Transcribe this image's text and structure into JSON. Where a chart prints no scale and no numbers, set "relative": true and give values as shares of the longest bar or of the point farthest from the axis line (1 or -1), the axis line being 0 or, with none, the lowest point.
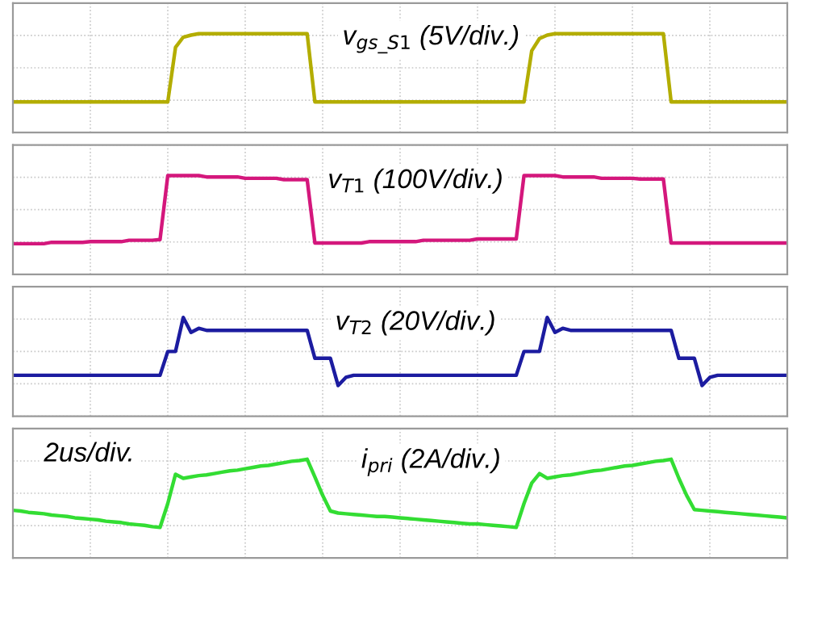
{
  "chart_data": [
    {
      "type": "line",
      "title": "v$_{gs_S1}$ (5V/div.)",
      "relative": true,
      "grid": true,
      "tick_labels": false,
      "categories": [
        null,
        null,
        null,
        null,
        null,
        null,
        null,
        null,
        null,
        null,
        null,
        null,
        null,
        null,
        null,
        null,
        null,
        null,
        null,
        null,
        null,
        null,
        null,
        null,
        null,
        null,
        null,
        null,
        null,
        null,
        null,
        null,
        null,
        null,
        null,
        null,
        null,
        null,
        null,
        null,
        null,
        null,
        null,
        null,
        null,
        null,
        null,
        null,
        null,
        null,
        null,
        null,
        null,
        null,
        null,
        null,
        null,
        null,
        null,
        null,
        null,
        null,
        null,
        null,
        null,
        null,
        null,
        null,
        null,
        null,
        null,
        null,
        null,
        null,
        null,
        null,
        null,
        null,
        null,
        null,
        null,
        null,
        null,
        null,
        null,
        null,
        null,
        null,
        null,
        null,
        null,
        null,
        null,
        null,
        null,
        null,
        null,
        null,
        null,
        null,
        null
      ],
      "series": [
        {
          "color": "#b3ad00",
          "values": [
            0,
            0,
            0,
            0,
            0,
            0,
            0,
            0,
            0,
            0,
            0,
            0,
            0,
            0,
            0,
            0,
            0,
            0,
            0,
            0,
            0,
            0.8,
            0.95,
            0.98,
            1,
            1,
            1,
            1,
            1,
            1,
            1,
            1,
            1,
            1,
            1,
            1,
            1,
            1,
            1,
            0,
            0,
            0,
            0,
            0,
            0,
            0,
            0,
            0,
            0,
            0,
            0,
            0,
            0,
            0,
            0,
            0,
            0,
            0,
            0,
            0,
            0,
            0,
            0,
            0,
            0,
            0,
            0,
            0.75,
            0.93,
            0.98,
            1,
            1,
            1,
            1,
            1,
            1,
            1,
            1,
            1,
            1,
            1,
            1,
            1,
            1,
            1,
            0,
            0,
            0,
            0,
            0,
            0,
            0,
            0,
            0,
            0,
            0,
            0,
            0,
            0,
            0,
            0
          ]
        }
      ]
    },
    {
      "type": "line",
      "title": "v$_{T1}$ (100V/div.)",
      "relative": true,
      "grid": true,
      "tick_labels": false,
      "categories": [
        null,
        null,
        null,
        null,
        null,
        null,
        null,
        null,
        null,
        null,
        null,
        null,
        null,
        null,
        null,
        null,
        null,
        null,
        null,
        null,
        null,
        null,
        null,
        null,
        null,
        null,
        null,
        null,
        null,
        null,
        null,
        null,
        null,
        null,
        null,
        null,
        null,
        null,
        null,
        null,
        null,
        null,
        null,
        null,
        null,
        null,
        null,
        null,
        null,
        null,
        null,
        null,
        null,
        null,
        null,
        null,
        null,
        null,
        null,
        null,
        null,
        null,
        null,
        null,
        null,
        null,
        null,
        null,
        null,
        null,
        null,
        null,
        null,
        null,
        null,
        null,
        null,
        null,
        null,
        null,
        null,
        null,
        null,
        null,
        null,
        null,
        null,
        null,
        null,
        null,
        null,
        null,
        null,
        null,
        null,
        null,
        null,
        null,
        null,
        null,
        null
      ],
      "series": [
        {
          "color": "#d4177c",
          "values": [
            0,
            0,
            0,
            0,
            0,
            0.02,
            0.02,
            0.02,
            0.02,
            0.02,
            0.03,
            0.03,
            0.03,
            0.03,
            0.03,
            0.05,
            0.05,
            0.05,
            0.05,
            0.06,
            1,
            1,
            1,
            1,
            1,
            0.98,
            0.98,
            0.98,
            0.98,
            0.98,
            0.96,
            0.96,
            0.96,
            0.96,
            0.96,
            0.94,
            0.94,
            0.94,
            0.94,
            0.01,
            0.01,
            0.01,
            0.01,
            0.01,
            0.01,
            0.01,
            0.03,
            0.03,
            0.03,
            0.03,
            0.03,
            0.03,
            0.03,
            0.05,
            0.05,
            0.05,
            0.05,
            0.05,
            0.05,
            0.05,
            0.07,
            0.07,
            0.07,
            0.07,
            0.07,
            0.07,
            1,
            1,
            1,
            1,
            1,
            0.98,
            0.98,
            0.98,
            0.98,
            0.98,
            0.96,
            0.96,
            0.96,
            0.96,
            0.96,
            0.95,
            0.95,
            0.95,
            0.95,
            0.01,
            0.01,
            0.01,
            0.01,
            0.01,
            0.01,
            0.01,
            0.01,
            0.01,
            0.01,
            0.01,
            0.01,
            0.01,
            0.01,
            0.01,
            0.01
          ]
        }
      ]
    },
    {
      "type": "line",
      "title": "v$_{T2}$ (20V/div.)",
      "relative": true,
      "grid": true,
      "tick_labels": false,
      "categories": [
        null,
        null,
        null,
        null,
        null,
        null,
        null,
        null,
        null,
        null,
        null,
        null,
        null,
        null,
        null,
        null,
        null,
        null,
        null,
        null,
        null,
        null,
        null,
        null,
        null,
        null,
        null,
        null,
        null,
        null,
        null,
        null,
        null,
        null,
        null,
        null,
        null,
        null,
        null,
        null,
        null,
        null,
        null,
        null,
        null,
        null,
        null,
        null,
        null,
        null,
        null,
        null,
        null,
        null,
        null,
        null,
        null,
        null,
        null,
        null,
        null,
        null,
        null,
        null,
        null,
        null,
        null,
        null,
        null,
        null,
        null,
        null,
        null,
        null,
        null,
        null,
        null,
        null,
        null,
        null,
        null,
        null,
        null,
        null,
        null,
        null,
        null,
        null,
        null,
        null,
        null,
        null,
        null,
        null,
        null,
        null,
        null,
        null,
        null,
        null,
        null
      ],
      "series": [
        {
          "color": "#1c1ca0",
          "values": [
            0.15,
            0.15,
            0.15,
            0.15,
            0.15,
            0.15,
            0.15,
            0.15,
            0.15,
            0.15,
            0.15,
            0.15,
            0.15,
            0.15,
            0.15,
            0.15,
            0.15,
            0.15,
            0.15,
            0.15,
            0.5,
            0.5,
            1,
            0.78,
            0.84,
            0.81,
            0.81,
            0.81,
            0.81,
            0.81,
            0.81,
            0.81,
            0.81,
            0.81,
            0.81,
            0.81,
            0.81,
            0.81,
            0.81,
            0.4,
            0.4,
            0.4,
            0,
            0.12,
            0.15,
            0.15,
            0.15,
            0.15,
            0.15,
            0.15,
            0.15,
            0.15,
            0.15,
            0.15,
            0.15,
            0.15,
            0.15,
            0.15,
            0.15,
            0.15,
            0.15,
            0.15,
            0.15,
            0.15,
            0.15,
            0.15,
            0.5,
            0.5,
            0.5,
            1,
            0.78,
            0.84,
            0.81,
            0.81,
            0.81,
            0.81,
            0.81,
            0.81,
            0.81,
            0.81,
            0.81,
            0.81,
            0.81,
            0.81,
            0.81,
            0.81,
            0.4,
            0.4,
            0.4,
            0,
            0.12,
            0.15,
            0.15,
            0.15,
            0.15,
            0.15,
            0.15,
            0.15,
            0.15,
            0.15,
            0.15
          ]
        }
      ]
    },
    {
      "type": "line",
      "title": "i$_{pri}$ (2A/div.)",
      "annotations": [
        "2us/div."
      ],
      "relative": true,
      "grid": true,
      "tick_labels": false,
      "categories": [
        null,
        null,
        null,
        null,
        null,
        null,
        null,
        null,
        null,
        null,
        null,
        null,
        null,
        null,
        null,
        null,
        null,
        null,
        null,
        null,
        null,
        null,
        null,
        null,
        null,
        null,
        null,
        null,
        null,
        null,
        null,
        null,
        null,
        null,
        null,
        null,
        null,
        null,
        null,
        null,
        null,
        null,
        null,
        null,
        null,
        null,
        null,
        null,
        null,
        null,
        null,
        null,
        null,
        null,
        null,
        null,
        null,
        null,
        null,
        null,
        null,
        null,
        null,
        null,
        null,
        null,
        null,
        null,
        null,
        null,
        null,
        null,
        null,
        null,
        null,
        null,
        null,
        null,
        null,
        null,
        null,
        null,
        null,
        null,
        null,
        null,
        null,
        null,
        null,
        null,
        null,
        null,
        null,
        null,
        null,
        null,
        null,
        null,
        null,
        null,
        null
      ],
      "series": [
        {
          "color": "#33dd33",
          "values": [
            0.25,
            0.24,
            0.22,
            0.21,
            0.2,
            0.18,
            0.17,
            0.16,
            0.14,
            0.13,
            0.12,
            0.11,
            0.09,
            0.08,
            0.07,
            0.05,
            0.04,
            0.03,
            0.01,
            0,
            0.35,
            0.78,
            0.72,
            0.74,
            0.76,
            0.77,
            0.79,
            0.81,
            0.83,
            0.84,
            0.86,
            0.88,
            0.9,
            0.91,
            0.93,
            0.95,
            0.97,
            0.98,
            1,
            0.74,
            0.47,
            0.24,
            0.21,
            0.2,
            0.19,
            0.18,
            0.17,
            0.16,
            0.16,
            0.15,
            0.14,
            0.13,
            0.12,
            0.11,
            0.1,
            0.09,
            0.08,
            0.07,
            0.06,
            0.05,
            0.05,
            0.04,
            0.03,
            0.02,
            0.01,
            0,
            0.35,
            0.65,
            0.79,
            0.72,
            0.74,
            0.76,
            0.77,
            0.79,
            0.81,
            0.83,
            0.84,
            0.86,
            0.88,
            0.9,
            0.91,
            0.93,
            0.95,
            0.97,
            0.98,
            1,
            0.72,
            0.47,
            0.26,
            0.25,
            0.24,
            0.23,
            0.22,
            0.21,
            0.2,
            0.19,
            0.18,
            0.17,
            0.16,
            0.15,
            0.14
          ]
        }
      ]
    }
  ]
}
